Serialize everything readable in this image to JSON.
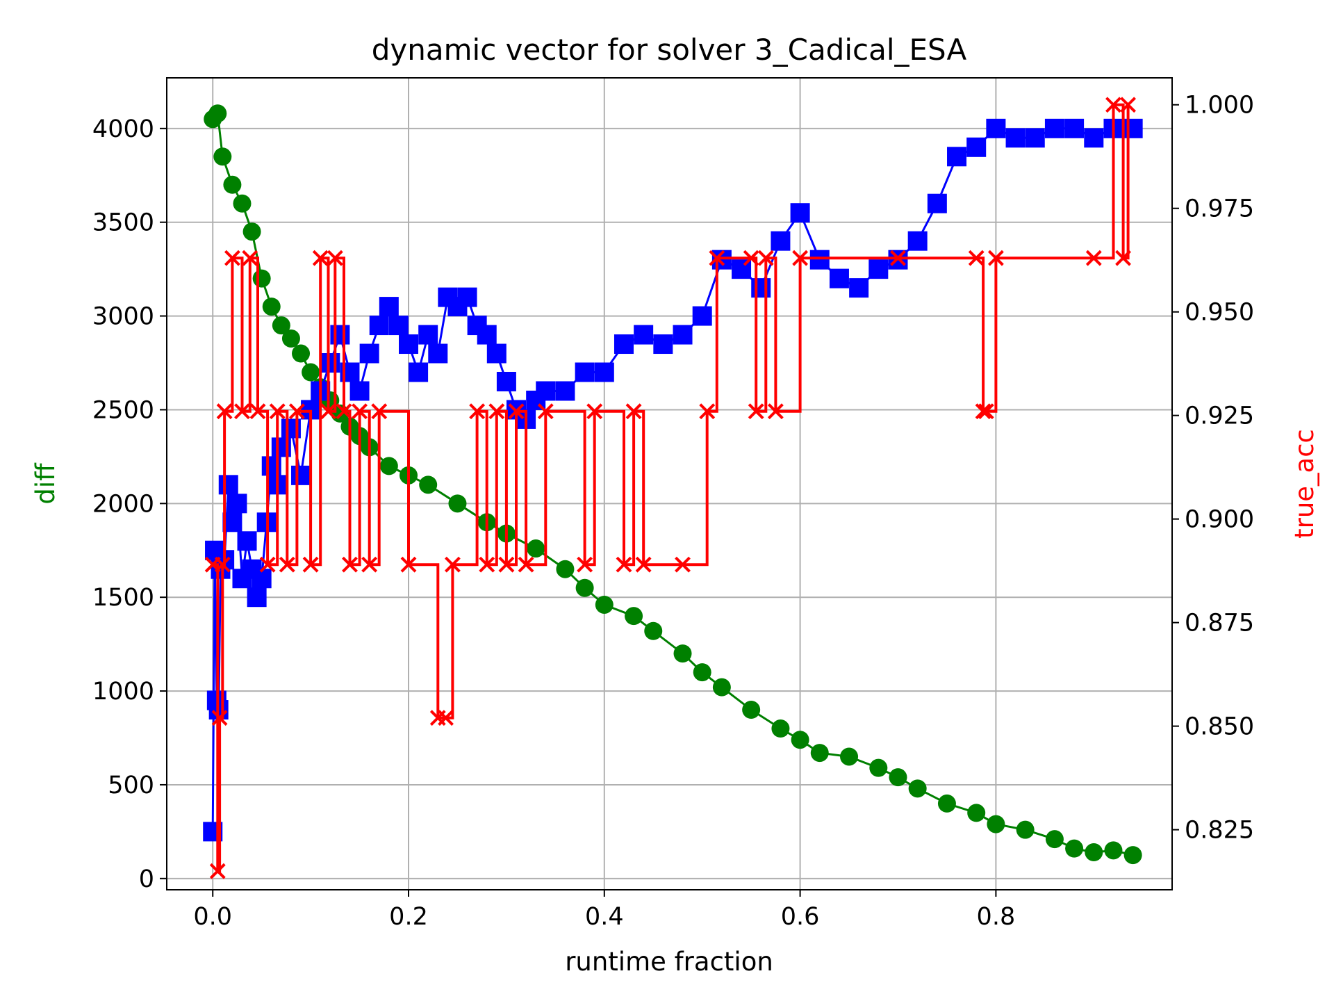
{
  "chart_data": {
    "type": "line",
    "title": "dynamic vector for solver 3_Cadical_ESA",
    "xlabel": "runtime fraction",
    "ylabel_left": "diff",
    "ylabel_right": "true_acc",
    "xlim": [
      -0.047,
      0.98
    ],
    "ylim_left": [
      -60,
      4270
    ],
    "ylim_right": [
      0.8105,
      1.0065
    ],
    "x_ticks": [
      "0.0",
      "0.2",
      "0.4",
      "0.6",
      "0.8"
    ],
    "y_left_ticks": [
      "0",
      "500",
      "1000",
      "1500",
      "2000",
      "2500",
      "3000",
      "3500",
      "4000"
    ],
    "y_right_ticks": [
      "0.825",
      "0.850",
      "0.875",
      "0.900",
      "0.925",
      "0.950",
      "0.975",
      "1.000"
    ],
    "grid": true,
    "colors": {
      "series1": "#008000",
      "series2": "#0000ff",
      "series3": "#ff0000",
      "grid": "#b0b0b0"
    },
    "series": [
      {
        "axis": "left",
        "marker": "circle",
        "color": "#008000",
        "x": [
          0.0,
          0.005,
          0.01,
          0.02,
          0.03,
          0.04,
          0.05,
          0.06,
          0.07,
          0.08,
          0.09,
          0.1,
          0.11,
          0.12,
          0.13,
          0.14,
          0.15,
          0.16,
          0.18,
          0.2,
          0.22,
          0.25,
          0.28,
          0.3,
          0.33,
          0.36,
          0.38,
          0.4,
          0.43,
          0.45,
          0.48,
          0.5,
          0.52,
          0.55,
          0.58,
          0.6,
          0.62,
          0.65,
          0.68,
          0.7,
          0.72,
          0.75,
          0.78,
          0.8,
          0.83,
          0.86,
          0.88,
          0.9,
          0.92,
          0.94
        ],
        "y": [
          4050,
          4080,
          3850,
          3700,
          3600,
          3450,
          3200,
          3050,
          2950,
          2880,
          2800,
          2700,
          2620,
          2550,
          2480,
          2410,
          2360,
          2300,
          2200,
          2150,
          2100,
          2000,
          1900,
          1840,
          1760,
          1650,
          1550,
          1460,
          1400,
          1320,
          1200,
          1100,
          1020,
          900,
          800,
          740,
          670,
          650,
          590,
          540,
          480,
          400,
          350,
          290,
          260,
          210,
          160,
          140,
          150,
          125
        ]
      },
      {
        "axis": "left",
        "marker": "square",
        "color": "#0000ff",
        "x": [
          0.0,
          0.002,
          0.004,
          0.006,
          0.008,
          0.012,
          0.016,
          0.02,
          0.025,
          0.03,
          0.035,
          0.04,
          0.045,
          0.05,
          0.055,
          0.06,
          0.065,
          0.07,
          0.08,
          0.09,
          0.1,
          0.11,
          0.12,
          0.13,
          0.14,
          0.15,
          0.16,
          0.17,
          0.18,
          0.19,
          0.2,
          0.21,
          0.22,
          0.23,
          0.24,
          0.25,
          0.26,
          0.27,
          0.28,
          0.29,
          0.3,
          0.31,
          0.32,
          0.33,
          0.34,
          0.36,
          0.38,
          0.4,
          0.42,
          0.44,
          0.46,
          0.48,
          0.5,
          0.52,
          0.54,
          0.56,
          0.58,
          0.6,
          0.62,
          0.64,
          0.66,
          0.68,
          0.7,
          0.72,
          0.74,
          0.76,
          0.78,
          0.8,
          0.82,
          0.84,
          0.86,
          0.88,
          0.9,
          0.92,
          0.94
        ],
        "y": [
          250,
          1750,
          950,
          900,
          1650,
          1700,
          2100,
          1900,
          2000,
          1600,
          1800,
          1650,
          1500,
          1600,
          1900,
          2200,
          2100,
          2300,
          2400,
          2150,
          2500,
          2600,
          2750,
          2900,
          2700,
          2600,
          2800,
          2950,
          3050,
          2950,
          2850,
          2700,
          2900,
          2800,
          3100,
          3050,
          3100,
          2950,
          2900,
          2800,
          2650,
          2500,
          2450,
          2550,
          2600,
          2600,
          2700,
          2700,
          2850,
          2900,
          2850,
          2900,
          3000,
          3300,
          3250,
          3150,
          3400,
          3550,
          3300,
          3200,
          3150,
          3250,
          3300,
          3400,
          3600,
          3850,
          3900,
          4000,
          3950,
          3950,
          4000,
          4000,
          3950,
          4000,
          4000
        ]
      },
      {
        "axis": "right",
        "marker": "x",
        "color": "#ff0000",
        "drawstyle": "steps",
        "x": [
          0.0,
          0.005,
          0.007,
          0.01,
          0.012,
          0.02,
          0.03,
          0.038,
          0.046,
          0.056,
          0.066,
          0.076,
          0.086,
          0.1,
          0.11,
          0.118,
          0.125,
          0.134,
          0.14,
          0.15,
          0.16,
          0.17,
          0.2,
          0.23,
          0.238,
          0.245,
          0.27,
          0.28,
          0.29,
          0.3,
          0.31,
          0.32,
          0.34,
          0.38,
          0.39,
          0.42,
          0.43,
          0.44,
          0.48,
          0.505,
          0.515,
          0.55,
          0.555,
          0.565,
          0.575,
          0.6,
          0.7,
          0.78,
          0.787,
          0.79,
          0.8,
          0.9,
          0.92,
          0.93,
          0.935
        ],
        "y": [
          0.889,
          0.815,
          0.852,
          0.889,
          0.926,
          0.963,
          0.926,
          0.963,
          0.926,
          0.889,
          0.926,
          0.889,
          0.926,
          0.889,
          0.963,
          0.926,
          0.963,
          0.926,
          0.889,
          0.926,
          0.889,
          0.926,
          0.889,
          0.852,
          0.852,
          0.889,
          0.926,
          0.889,
          0.926,
          0.889,
          0.926,
          0.889,
          0.926,
          0.889,
          0.926,
          0.889,
          0.926,
          0.889,
          0.889,
          0.926,
          0.963,
          0.963,
          0.926,
          0.963,
          0.926,
          0.963,
          0.963,
          0.963,
          0.926,
          0.926,
          0.963,
          0.963,
          1.0,
          0.963,
          1.0
        ]
      }
    ]
  }
}
